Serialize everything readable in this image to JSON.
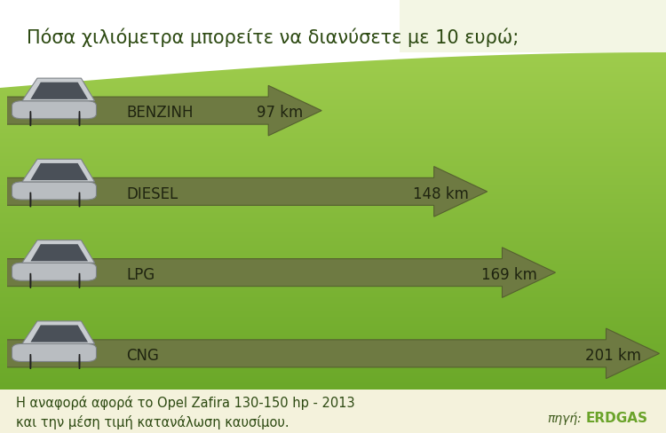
{
  "chart_data": {
    "type": "bar",
    "orientation": "horizontal",
    "title": "Πόσα χιλιόμετρα μπορείτε να διανύσετε με 10 ευρώ;",
    "categories": [
      "BENZINH",
      "DIESEL",
      "LPG",
      "CNG"
    ],
    "values": [
      97,
      148,
      169,
      201
    ],
    "value_labels": [
      "97 km",
      "148 km",
      "169 km",
      "201 km"
    ],
    "data_labels": true,
    "tick_labels": false,
    "grid": false,
    "color": "#6e7a42",
    "note": "Η αναφορά αφορά το Opel Zafira 130-150 hp - 2013\nκαι την μέση τιμή κατανάλωση καυσίμου.",
    "source_label": "πηγή:",
    "source": "ERDGAS"
  }
}
